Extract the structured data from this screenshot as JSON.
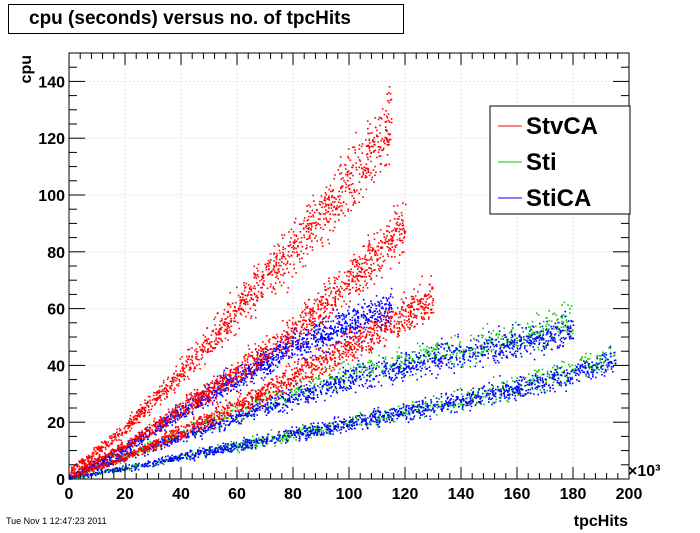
{
  "title": "cpu (seconds) versus no. of tpcHits",
  "datestamp": "Tue Nov  1 12:47:23 2011",
  "colors": {
    "StvCA": "#ff0000",
    "Sti": "#00cc00",
    "StiCA": "#0000ff",
    "frame": "#000000",
    "grid": "#c8c8c8"
  },
  "chart_data": {
    "type": "scatter",
    "title": "cpu (seconds) versus no. of tpcHits",
    "xlabel": "tpcHits",
    "ylabel": "cpu",
    "x_multiplier": "×10³",
    "xlim": [
      0,
      200
    ],
    "ylim": [
      0,
      150
    ],
    "x_ticks": [
      0,
      20,
      40,
      60,
      80,
      100,
      120,
      140,
      160,
      180,
      200
    ],
    "y_ticks": [
      0,
      20,
      40,
      60,
      80,
      100,
      120,
      140
    ],
    "grid": true,
    "legend_position": "top-right",
    "series": [
      {
        "name": "StvCA",
        "color": "#ff0000",
        "bands": [
          {
            "x": [
              0,
              20,
              40,
              60,
              80,
              100,
              120
            ],
            "y": [
              2,
              12,
              25,
              38,
              52,
              70,
              90
            ]
          },
          {
            "x": [
              0,
              20,
              40,
              60,
              80,
              100,
              115
            ],
            "y": [
              3,
              18,
              38,
              60,
              82,
              104,
              126
            ]
          },
          {
            "x": [
              0,
              20,
              40,
              60,
              80,
              100,
              120,
              130
            ],
            "y": [
              1,
              8,
              17,
              26,
              36,
              47,
              58,
              64
            ]
          }
        ]
      },
      {
        "name": "Sti",
        "color": "#00cc00",
        "bands": [
          {
            "x": [
              0,
              20,
              40,
              60,
              80,
              100,
              120,
              140,
              160,
              180
            ],
            "y": [
              1,
              8,
              16,
              24,
              31,
              37,
              42,
              46,
              51,
              56
            ]
          },
          {
            "x": [
              0,
              20,
              40,
              60,
              80,
              100,
              120,
              140,
              160,
              180,
              195
            ],
            "y": [
              0.5,
              4,
              8,
              12,
              16,
              20,
              24,
              28,
              33,
              39,
              43
            ]
          }
        ]
      },
      {
        "name": "StiCA",
        "color": "#0000ff",
        "bands": [
          {
            "x": [
              0,
              20,
              40,
              60,
              80,
              100,
              120,
              140,
              160,
              180
            ],
            "y": [
              1,
              8,
              15,
              22,
              29,
              35,
              40,
              44,
              48,
              53
            ]
          },
          {
            "x": [
              0,
              20,
              40,
              60,
              80,
              100,
              120,
              140,
              160,
              180,
              195
            ],
            "y": [
              0.5,
              4,
              8,
              12,
              16,
              20,
              24,
              28,
              32,
              37,
              42
            ]
          },
          {
            "x": [
              0,
              20,
              40,
              60,
              80,
              100,
              115
            ],
            "y": [
              1,
              11,
              24,
              36,
              47,
              55,
              60
            ]
          }
        ]
      }
    ]
  }
}
